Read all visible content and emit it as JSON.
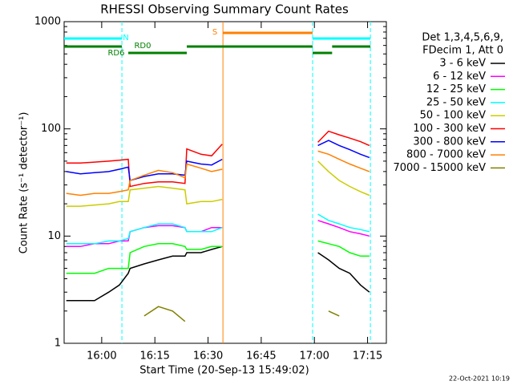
{
  "chart_data": {
    "type": "line",
    "title": "RHESSI Observing Summary Count Rates",
    "xlabel": "Start Time (20-Sep-13 15:49:02)",
    "ylabel": "Count Rate (s⁻¹ detector⁻¹)",
    "legend_header": [
      "Det 1,3,4,5,6,9,",
      "FDecim 1, Att 0"
    ],
    "footer": "22-Oct-2021 10:19",
    "ylog": true,
    "ylim": [
      1,
      1000
    ],
    "yticks": [
      1,
      10,
      100,
      1000
    ],
    "xlim": [
      949.4,
      1040.3
    ],
    "xticks": [
      {
        "value": 960,
        "label": "16:00"
      },
      {
        "value": 975,
        "label": "16:15"
      },
      {
        "value": 990,
        "label": "16:30"
      },
      {
        "value": 1005,
        "label": "16:45"
      },
      {
        "value": 1020,
        "label": "17:00"
      },
      {
        "value": 1035,
        "label": "17:15"
      }
    ],
    "x": [
      950,
      954,
      958,
      962,
      965,
      967.5,
      968,
      972,
      976,
      980,
      983.5,
      984,
      988,
      991,
      994,
      1010,
      1021,
      1024,
      1027,
      1030,
      1033,
      1035.5
    ],
    "series": [
      {
        "name": "3 - 6 keV",
        "color": "#000000",
        "values": [
          2.5,
          2.5,
          2.5,
          3,
          3.5,
          4.5,
          5,
          5.5,
          6,
          6.5,
          6.5,
          7,
          7,
          7.5,
          8,
          null,
          7,
          6,
          5,
          4.5,
          3.5,
          3
        ]
      },
      {
        "name": "6 - 12 keV",
        "color": "#ff00ff",
        "values": [
          8,
          8,
          8.5,
          8.5,
          9,
          9,
          11,
          12,
          12.5,
          12.5,
          12,
          11,
          11,
          12,
          12,
          null,
          14,
          13,
          12,
          11,
          10.5,
          10
        ]
      },
      {
        "name": "12 - 25 keV",
        "color": "#00ff00",
        "values": [
          4.5,
          4.5,
          4.5,
          5,
          5,
          5,
          7,
          8,
          8.5,
          8.5,
          8,
          7.5,
          7.5,
          8,
          8,
          null,
          9,
          8.5,
          8,
          7,
          6.5,
          6.5
        ]
      },
      {
        "name": "25 - 50 keV",
        "color": "#00ffff",
        "values": [
          8.5,
          8.5,
          8.5,
          9,
          9,
          9.5,
          11,
          12,
          13,
          13,
          12,
          11,
          11,
          11,
          12,
          null,
          16,
          14,
          13,
          12,
          11.5,
          11
        ]
      },
      {
        "name": "50 - 100 keV",
        "color": "#cccc00",
        "values": [
          19,
          19,
          19.5,
          20,
          21,
          21,
          27,
          28,
          29,
          28,
          27,
          20,
          21,
          21,
          22,
          null,
          50,
          40,
          33,
          29,
          26,
          24
        ]
      },
      {
        "name": "100 - 300 keV",
        "color": "#ff0000",
        "values": [
          48,
          48,
          49,
          50,
          51,
          52,
          29,
          31,
          32,
          32,
          31,
          65,
          58,
          56,
          72,
          null,
          75,
          95,
          88,
          82,
          76,
          70
        ]
      },
      {
        "name": "300 - 800 keV",
        "color": "#0000ff",
        "values": [
          40,
          38,
          39,
          40,
          42,
          44,
          33,
          36,
          38,
          38,
          37,
          50,
          47,
          46,
          52,
          null,
          70,
          78,
          70,
          64,
          58,
          54
        ]
      },
      {
        "name": "800 - 7000 keV",
        "color": "#ff8000",
        "values": [
          25,
          24,
          25,
          25,
          26,
          27,
          33,
          37,
          41,
          39,
          35,
          47,
          43,
          40,
          42,
          null,
          62,
          58,
          52,
          47,
          43,
          40
        ]
      },
      {
        "name": "7000 - 15000 keV",
        "color": "#808000",
        "values": [
          null,
          null,
          null,
          null,
          null,
          null,
          null,
          1.8,
          2.2,
          2,
          1.6,
          null,
          null,
          null,
          null,
          null,
          null,
          2,
          1.8,
          null,
          null,
          null
        ]
      }
    ],
    "state_bars": [
      {
        "label": "N",
        "color": "#00ffff",
        "spans": [
          [
            949.4,
            965.7
          ],
          [
            1019.5,
            1035.8
          ]
        ]
      },
      {
        "label": "S",
        "color": "#ff8000",
        "spans": [
          [
            994.2,
            1019.5
          ]
        ]
      },
      {
        "label": "RD0",
        "color": "#008000",
        "spans": [
          [
            949.4,
            965.7
          ],
          [
            984,
            1019.5
          ],
          [
            1025,
            1035.8
          ]
        ]
      },
      {
        "label": "RD6",
        "color": "#008000",
        "spans": [
          [
            967.5,
            984
          ],
          [
            1019.5,
            1025
          ]
        ]
      }
    ],
    "markers": [
      {
        "x": 965.7,
        "color": "#00ffff",
        "dashed": true
      },
      {
        "x": 994.2,
        "color": "#ff8000",
        "dashed": false
      },
      {
        "x": 1019.5,
        "color": "#00ffff",
        "dashed": true
      },
      {
        "x": 1035.8,
        "color": "#00ffff",
        "dashed": true
      }
    ]
  }
}
